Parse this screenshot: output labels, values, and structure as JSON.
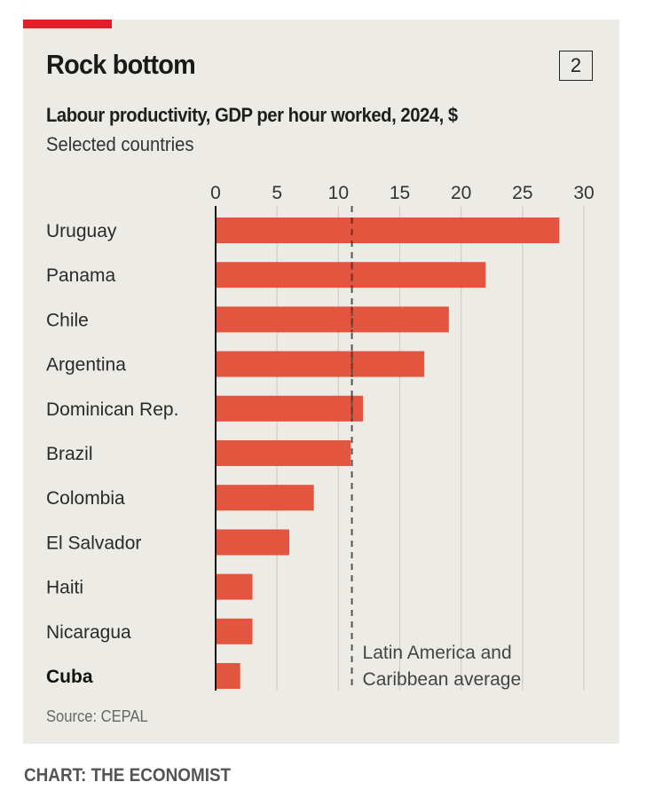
{
  "header": {
    "title": "Rock bottom",
    "chart_number": "2",
    "subtitle": "Labour productivity, GDP per hour worked, 2024, $",
    "subtitle2": "Selected countries"
  },
  "footer": {
    "source": "Source: CEPAL",
    "credit": "CHART: THE ECONOMIST"
  },
  "colors": {
    "bar": "#e3553f",
    "accent": "#e3202a",
    "background": "#ecebe5"
  },
  "chart_data": {
    "type": "bar",
    "orientation": "horizontal",
    "title": "Rock bottom",
    "subtitle": "Labour productivity, GDP per hour worked, 2024, $",
    "xlabel": "",
    "ylabel": "",
    "xlim": [
      0,
      30
    ],
    "xticks": [
      0,
      5,
      10,
      15,
      20,
      25,
      30
    ],
    "grid": true,
    "categories": [
      "Uruguay",
      "Panama",
      "Chile",
      "Argentina",
      "Dominican Rep.",
      "Brazil",
      "Colombia",
      "El Salvador",
      "Haiti",
      "Nicaragua",
      "Cuba"
    ],
    "values": [
      28,
      22,
      19,
      17,
      12,
      11,
      8,
      6,
      3,
      3,
      2
    ],
    "highlight": [
      "Cuba"
    ],
    "reference_line": {
      "value": 11.1,
      "style": "dashed",
      "label": [
        "Latin America and",
        "Caribbean average"
      ]
    }
  }
}
